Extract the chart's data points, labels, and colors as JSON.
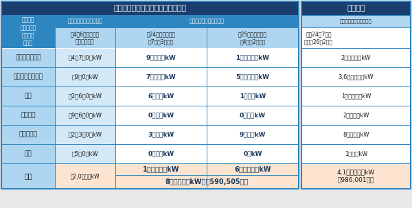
{
  "title": "設備導入量（運転を開始したもの）",
  "right_title": "認定容量",
  "right_col_header1": "固定価格買取制度導入後",
  "right_col_header2": "平成24年7月～\n　平成26年2月末",
  "header_left": "再生可能\nエネルギー\n発電設備\nの種類",
  "header_before": "固定価格買取制度導入前",
  "header_before_sub": "平4年6月末までの\nの累積導入量",
  "header_after": "固定価格買取制度導入後",
  "header_after_sub1": "平24年度の導入量\n（7月～3月末）",
  "header_after_sub2": "平25年度の導入量\n（4月～2月末）",
  "rows": [
    [
      "太陽光（住宅）",
      "田4买7万0万kW",
      "9６．９万kW",
      "1２２．１万kW",
      "2５２．９万kW"
    ],
    [
      "太陽光（非住宅）",
      "田9万0万kW",
      "7０．４万kW",
      "5０５．２万kW",
      "3,6５１．６万kW"
    ],
    [
      "風力",
      "田2万6万0万kW",
      "6．３万kW",
      "1．５万kW",
      "1０１．２万kW"
    ],
    [
      "中小水力",
      "田9万6万0万kW",
      "0．２万kW",
      "0．４万kW",
      "2６．１万kW"
    ],
    [
      "バイオマス",
      "田2万3万0万kW",
      "3．０万kW",
      "9．０万kW",
      "8７．４万kW"
    ],
    [
      "地熱",
      "田5万0万kW",
      "0．１万kW",
      "0万kW",
      "1．３万kW"
    ]
  ],
  "total_label": "合計",
  "total_col1": "田2,0６０万kW",
  "total_sub1": "1７６．９万kW",
  "total_sub2": "6３８．１万kW",
  "total_bottom": "8１５．０万kW　（590,505件）",
  "total_right": "4,1２０．５万kW\n（986,001件）",
  "colors": {
    "title_bg": "#1a3f6f",
    "header_blue_dark": "#1e6091",
    "header_blue_mid": "#2e86c1",
    "header_blue_light": "#aed6f1",
    "cell_blue_light": "#d4e9f7",
    "cell_white": "#ffffff",
    "cell_peach": "#fce4d0",
    "border": "#2e86c1",
    "text_white": "#ffffff",
    "text_dark": "#1a1a1a",
    "text_blue": "#1a3a5c",
    "right_title_bg": "#1a3f6f",
    "right_header1_bg": "#aed6f1",
    "right_header2_bg": "#ffffff"
  }
}
